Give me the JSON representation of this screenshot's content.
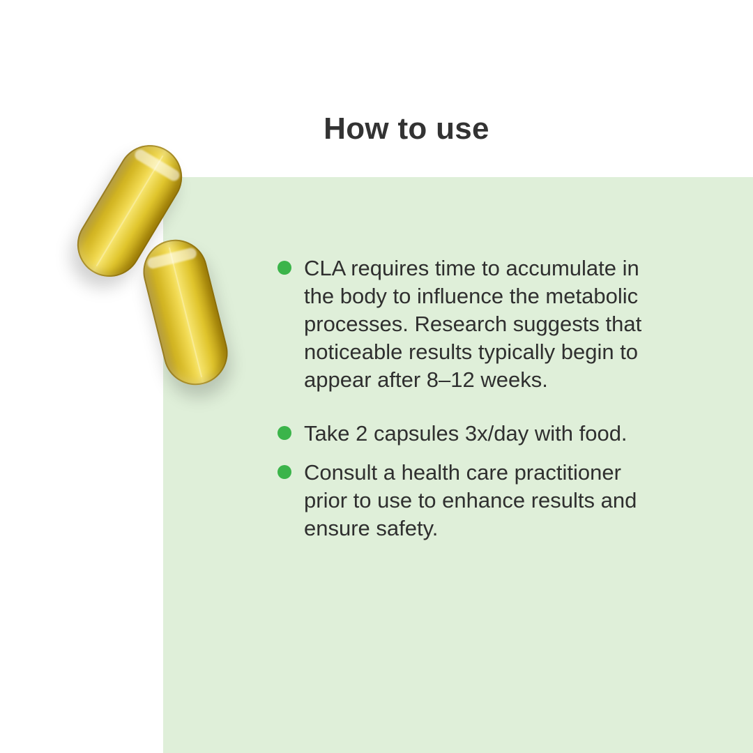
{
  "page": {
    "title": "How to use"
  },
  "instructions": {
    "items": [
      "CLA requires time to accumulate in the body to  influence the metabolic processes. Research suggests that noticeable results typically begin to appear after 8–12 weeks.",
      "Take 2 capsules 3x/day with food.",
      "Consult a health care practitioner prior to use to enhance results and ensure safety."
    ]
  },
  "icons": {
    "bullet": "green-dot-icon",
    "capsule": "softgel-capsule-icon"
  },
  "colors": {
    "panel_background": "#dfefd9",
    "bullet": "#3bb44a",
    "text": "#2f2f2f",
    "title": "#333333"
  }
}
